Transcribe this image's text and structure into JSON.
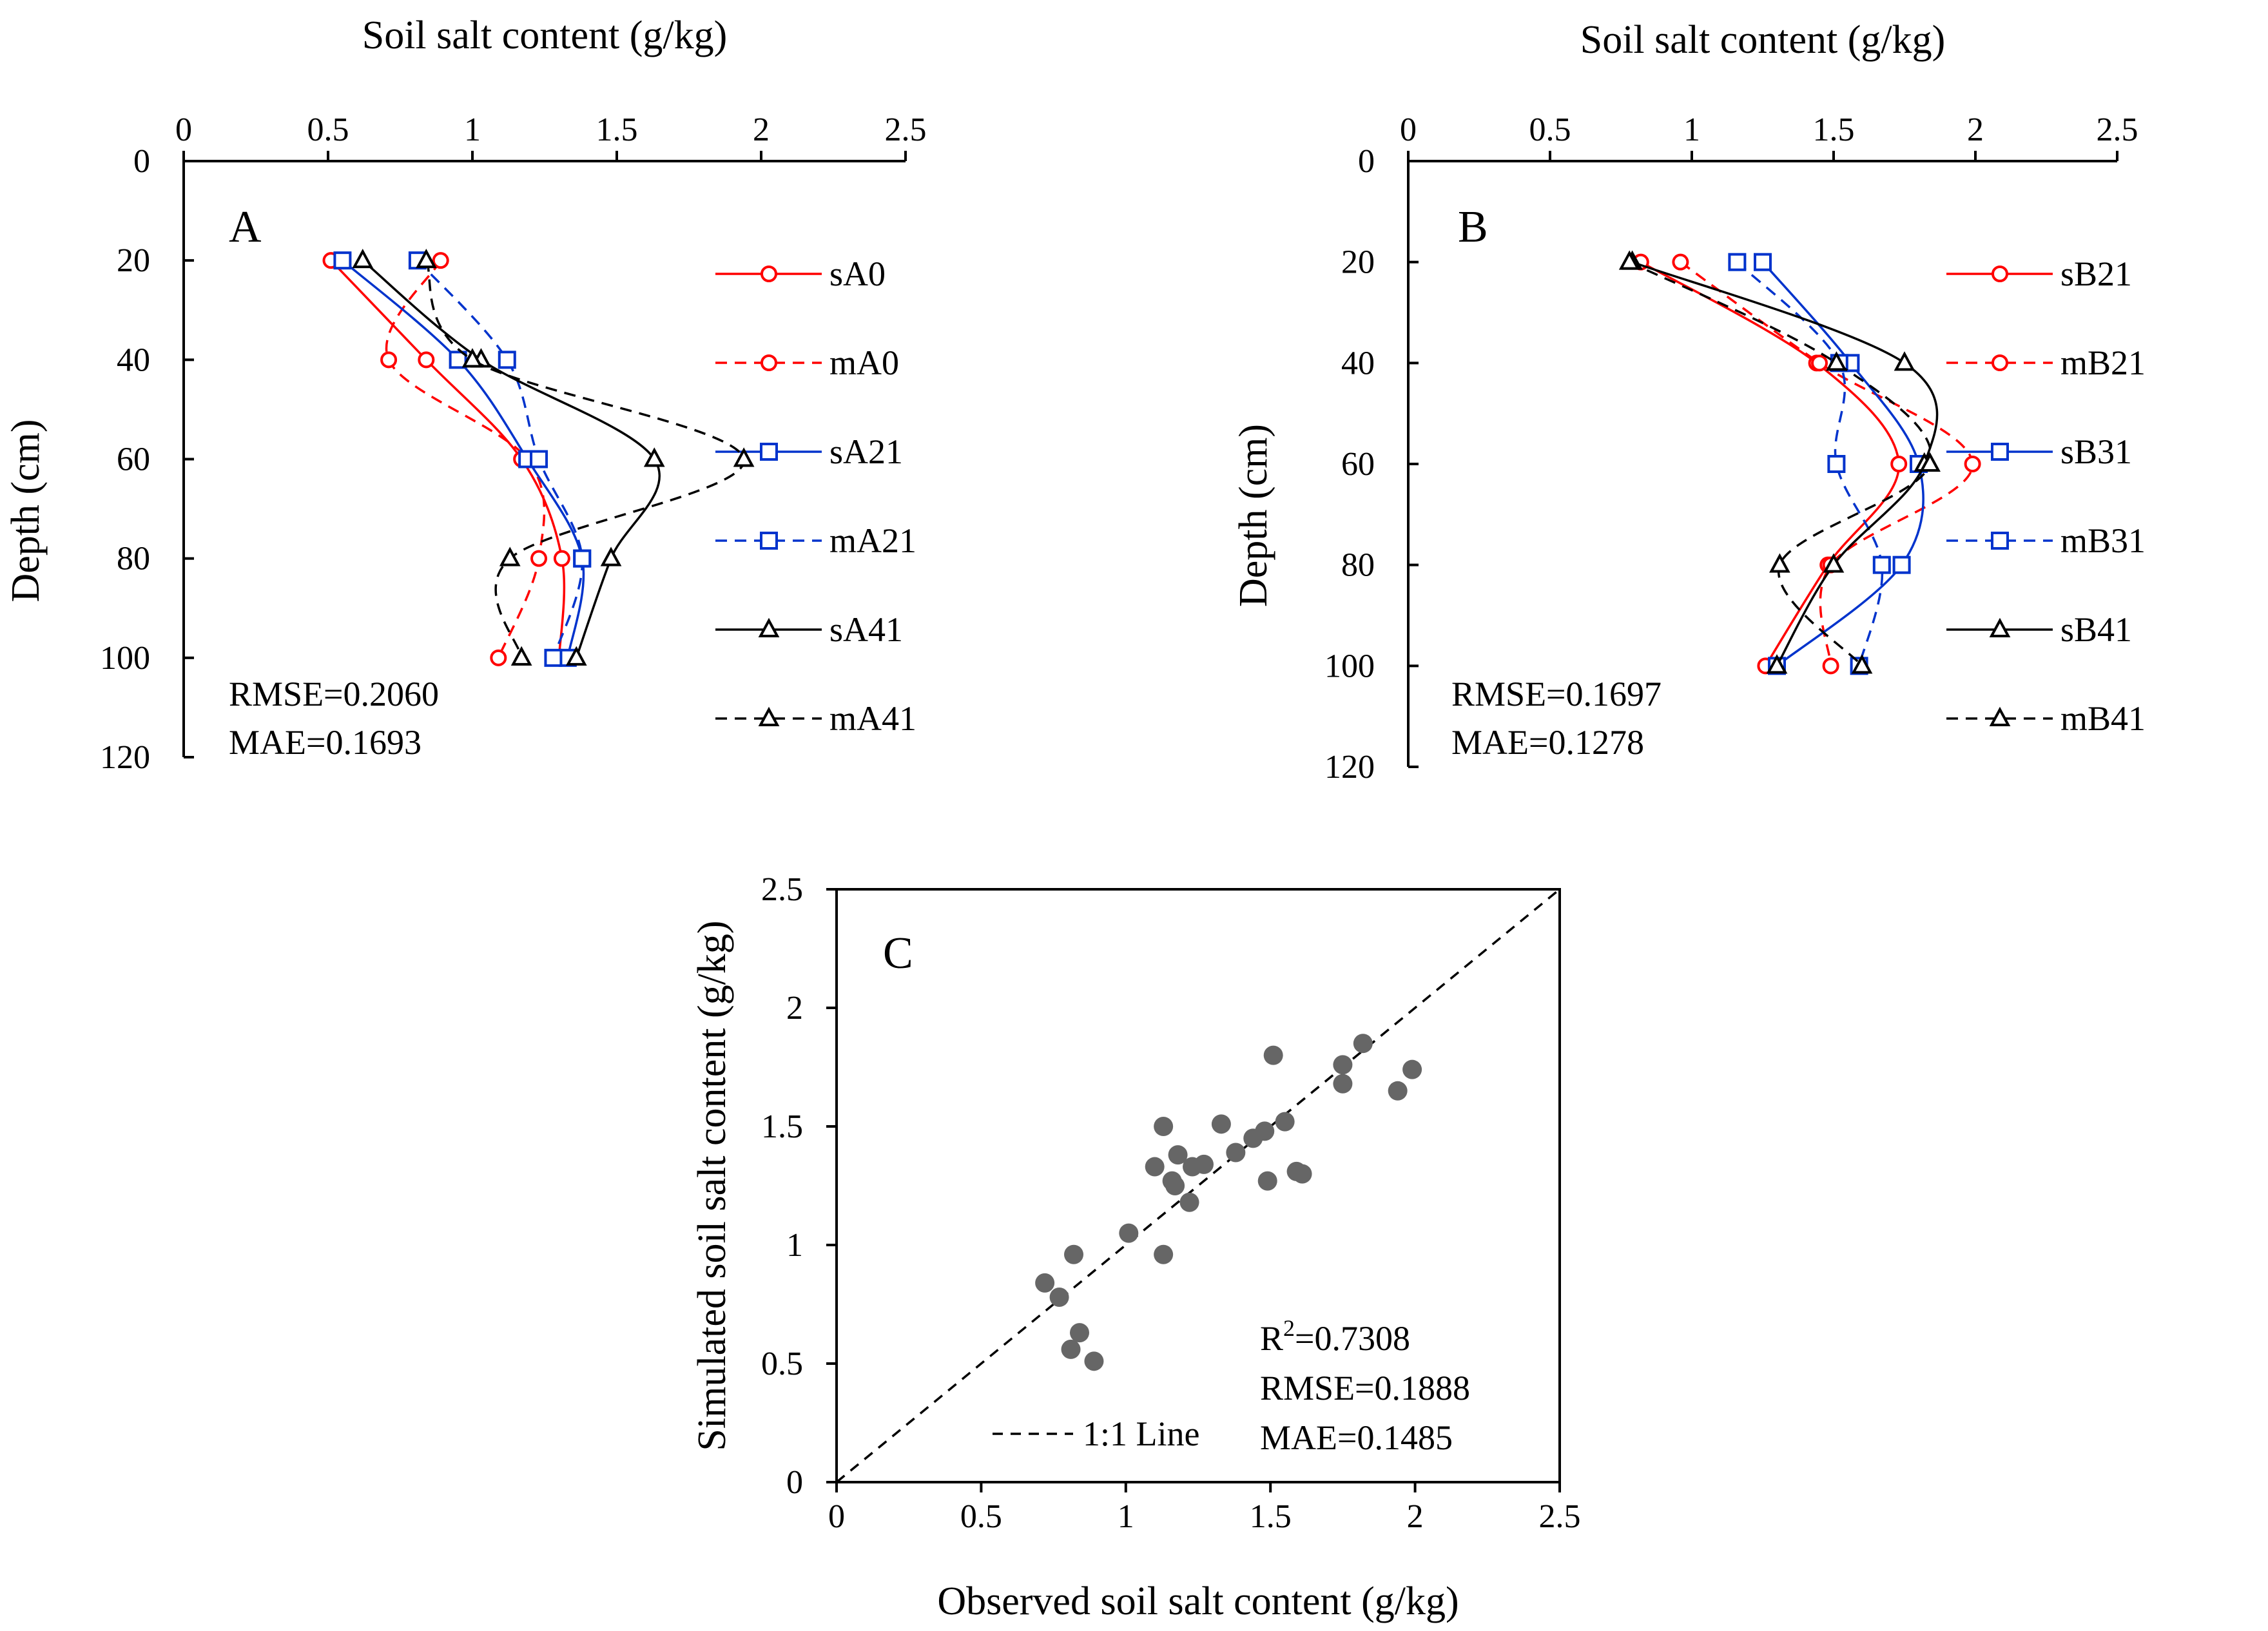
{
  "chart_data": [
    {
      "type": "line",
      "id": "A",
      "panel_label": "A",
      "xlabel": "Soil salt content (g/kg)",
      "ylabel": "Depth (cm)",
      "xlim": [
        0,
        2.5
      ],
      "ylim": [
        0,
        120
      ],
      "xticks": [
        "0",
        "0.5",
        "1",
        "1.5",
        "2",
        "2.5"
      ],
      "yticks": [
        "0",
        "20",
        "40",
        "60",
        "80",
        "100",
        "120"
      ],
      "x_axis_position": "top",
      "y_axis_inverted": true,
      "legend_position": "right",
      "stats": {
        "rmse": "RMSE=0.2060",
        "mae": "MAE=0.1693"
      },
      "depths": [
        20,
        40,
        60,
        80,
        100
      ],
      "series": [
        {
          "name": "sA0",
          "color": "#ff0000",
          "dashed": false,
          "marker": "circle",
          "values": [
            0.51,
            0.84,
            1.17,
            1.31,
            1.3
          ]
        },
        {
          "name": "mA0",
          "color": "#ff0000",
          "dashed": true,
          "marker": "circle",
          "values": [
            0.89,
            0.71,
            1.19,
            1.23,
            1.09
          ]
        },
        {
          "name": "sA21",
          "color": "#0033cc",
          "dashed": false,
          "marker": "square",
          "values": [
            0.55,
            0.95,
            1.19,
            1.38,
            1.33
          ]
        },
        {
          "name": "mA21",
          "color": "#0033cc",
          "dashed": true,
          "marker": "square",
          "values": [
            0.81,
            1.12,
            1.23,
            1.38,
            1.28
          ]
        },
        {
          "name": "sA41",
          "color": "#000000",
          "dashed": false,
          "marker": "triangle",
          "values": [
            0.62,
            1.03,
            1.63,
            1.48,
            1.36
          ]
        },
        {
          "name": "mA41",
          "color": "#000000",
          "dashed": true,
          "marker": "triangle",
          "values": [
            0.84,
            1.0,
            1.94,
            1.13,
            1.17
          ]
        }
      ]
    },
    {
      "type": "line",
      "id": "B",
      "panel_label": "B",
      "xlabel": "Soil salt content (g/kg)",
      "ylabel": "Depth (cm)",
      "xlim": [
        0,
        2.5
      ],
      "ylim": [
        0,
        120
      ],
      "xticks": [
        "0",
        "0.5",
        "1",
        "1.5",
        "2",
        "2.5"
      ],
      "yticks": [
        "0",
        "20",
        "40",
        "60",
        "80",
        "100",
        "120"
      ],
      "x_axis_position": "top",
      "y_axis_inverted": true,
      "legend_position": "right",
      "stats": {
        "rmse": "RMSE=0.1697",
        "mae": "MAE=0.1278"
      },
      "depths": [
        20,
        40,
        60,
        80,
        100
      ],
      "series": [
        {
          "name": "sB21",
          "color": "#ff0000",
          "dashed": false,
          "marker": "circle",
          "values": [
            0.82,
            1.44,
            1.73,
            1.48,
            1.26
          ]
        },
        {
          "name": "mB21",
          "color": "#ff0000",
          "dashed": true,
          "marker": "circle",
          "values": [
            0.96,
            1.45,
            1.99,
            1.49,
            1.49
          ]
        },
        {
          "name": "sB31",
          "color": "#0033cc",
          "dashed": false,
          "marker": "square",
          "values": [
            1.25,
            1.56,
            1.8,
            1.74,
            1.3
          ]
        },
        {
          "name": "mB31",
          "color": "#0033cc",
          "dashed": true,
          "marker": "square",
          "values": [
            1.16,
            1.52,
            1.51,
            1.67,
            1.59
          ]
        },
        {
          "name": "sB41",
          "color": "#000000",
          "dashed": false,
          "marker": "triangle",
          "values": [
            0.79,
            1.75,
            1.82,
            1.5,
            1.3
          ]
        },
        {
          "name": "mB41",
          "color": "#000000",
          "dashed": true,
          "marker": "triangle",
          "values": [
            0.78,
            1.51,
            1.84,
            1.31,
            1.6
          ]
        }
      ]
    },
    {
      "type": "scatter",
      "id": "C",
      "panel_label": "C",
      "xlabel": "Observed soil salt content (g/kg)",
      "ylabel": "Simulated soil salt content (g/kg)",
      "xlim": [
        0,
        2.5
      ],
      "ylim": [
        0,
        2.5
      ],
      "xticks": [
        "0",
        "0.5",
        "1",
        "1.5",
        "2",
        "2.5"
      ],
      "yticks": [
        "0",
        "0.5",
        "1",
        "1.5",
        "2",
        "2.5"
      ],
      "point_color": "#666666",
      "one_to_one_label": "1:1 Line",
      "stats": {
        "r2_base": "R",
        "r2_sup": "2",
        "r2_value": "=0.7308",
        "rmse": "RMSE=0.1888",
        "mae": "MAE=0.1485"
      },
      "points": [
        [
          0.72,
          0.84
        ],
        [
          0.77,
          0.78
        ],
        [
          0.82,
          0.96
        ],
        [
          0.81,
          0.56
        ],
        [
          0.84,
          0.63
        ],
        [
          0.89,
          0.51
        ],
        [
          1.01,
          1.05
        ],
        [
          1.13,
          0.96
        ],
        [
          1.13,
          1.5
        ],
        [
          1.1,
          1.33
        ],
        [
          1.16,
          1.27
        ],
        [
          1.17,
          1.25
        ],
        [
          1.18,
          1.38
        ],
        [
          1.22,
          1.18
        ],
        [
          1.23,
          1.33
        ],
        [
          1.27,
          1.34
        ],
        [
          1.33,
          1.51
        ],
        [
          1.38,
          1.39
        ],
        [
          1.44,
          1.45
        ],
        [
          1.48,
          1.48
        ],
        [
          1.49,
          1.27
        ],
        [
          1.51,
          1.8
        ],
        [
          1.55,
          1.52
        ],
        [
          1.59,
          1.31
        ],
        [
          1.61,
          1.3
        ],
        [
          1.75,
          1.68
        ],
        [
          1.75,
          1.76
        ],
        [
          1.82,
          1.85
        ],
        [
          1.94,
          1.65
        ],
        [
          1.99,
          1.74
        ]
      ]
    }
  ]
}
